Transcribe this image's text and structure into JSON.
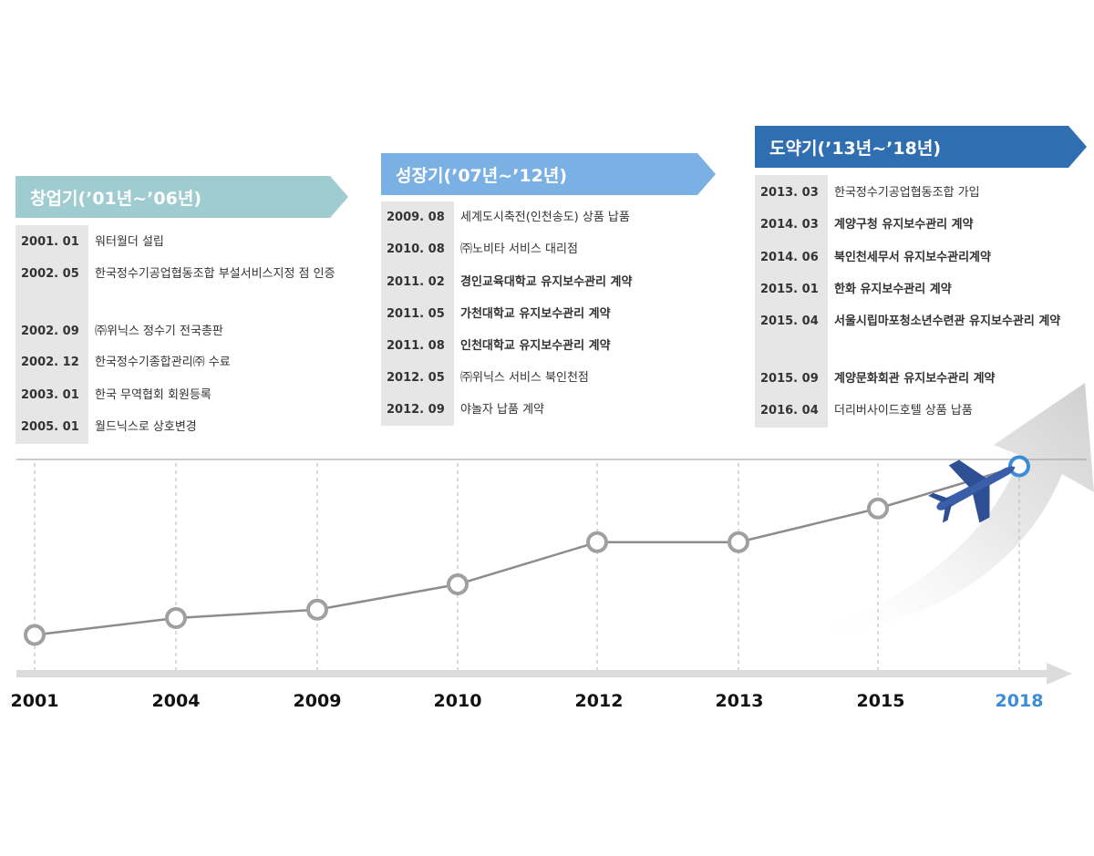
{
  "phases": [
    {
      "title": "창업기(’01년~’06년)",
      "color": "#9fccd1",
      "events": [
        {
          "date": "2001. 01",
          "text": "워터월더 설립"
        },
        {
          "date": "2002. 05",
          "text": "한국정수기공업협동조합 부설서비스지정 점 인증"
        },
        {
          "date": "2002. 09",
          "text": "㈜위닉스 정수기 전국총판"
        },
        {
          "date": "2002. 12",
          "text": "한국정수기종합관리㈜ 수료"
        },
        {
          "date": "2003. 01",
          "text": "한국 무역협회 회원등록"
        },
        {
          "date": "2005. 01",
          "text": "월드닉스로 상호변경"
        }
      ]
    },
    {
      "title": "성장기(’07년~’12년)",
      "color": "#7ab0e4",
      "events": [
        {
          "date": "2009. 08",
          "text": "세계도시축전(인천송도) 상품 납품"
        },
        {
          "date": "2010. 08",
          "text": "㈜노비타 서비스 대리점"
        },
        {
          "date": "2011. 02",
          "text": "경인교육대학교 유지보수관리 계약"
        },
        {
          "date": "2011. 05",
          "text": "가천대학교 유지보수관리 계약"
        },
        {
          "date": "2011. 08",
          "text": "인천대학교 유지보수관리 계약"
        },
        {
          "date": "2012. 05",
          "text": "㈜위닉스 서비스 북인천점"
        },
        {
          "date": "2012. 09",
          "text": "야놀자 납품 계약"
        }
      ]
    },
    {
      "title": "도약기(’13년~’18년)",
      "color": "#2f6eb0",
      "events": [
        {
          "date": "2013. 03",
          "text": "한국정수기공업협동조합 가입"
        },
        {
          "date": "2014. 03",
          "text": "계양구청 유지보수관리 계약"
        },
        {
          "date": "2014. 06",
          "text": "북인천세무서 유지보수관리계약"
        },
        {
          "date": "2015. 01",
          "text": "한화 유지보수관리 계약"
        },
        {
          "date": "2015. 04",
          "text": "서울시립마포청소년수련관 유지보수관리 계약"
        },
        {
          "date": "2015. 09",
          "text": "계양문화회관 유지보수관리 계약"
        },
        {
          "date": "2016. 04",
          "text": "더리버사이드호텔 상품 납품"
        }
      ]
    }
  ],
  "chart_data": {
    "type": "line",
    "categories": [
      "2001",
      "2004",
      "2009",
      "2010",
      "2012",
      "2013",
      "2015",
      "2018"
    ],
    "values": [
      1,
      2,
      2.5,
      4,
      6.5,
      6.5,
      8.5,
      11
    ],
    "highlight": "2018",
    "highlight_color": "#3a8dd6",
    "line_color": "#8c8c8c",
    "title": "",
    "xlabel": "",
    "ylabel": ""
  },
  "icons": {
    "plane": "airplane-icon",
    "arrow": "growth-arrow-icon"
  }
}
